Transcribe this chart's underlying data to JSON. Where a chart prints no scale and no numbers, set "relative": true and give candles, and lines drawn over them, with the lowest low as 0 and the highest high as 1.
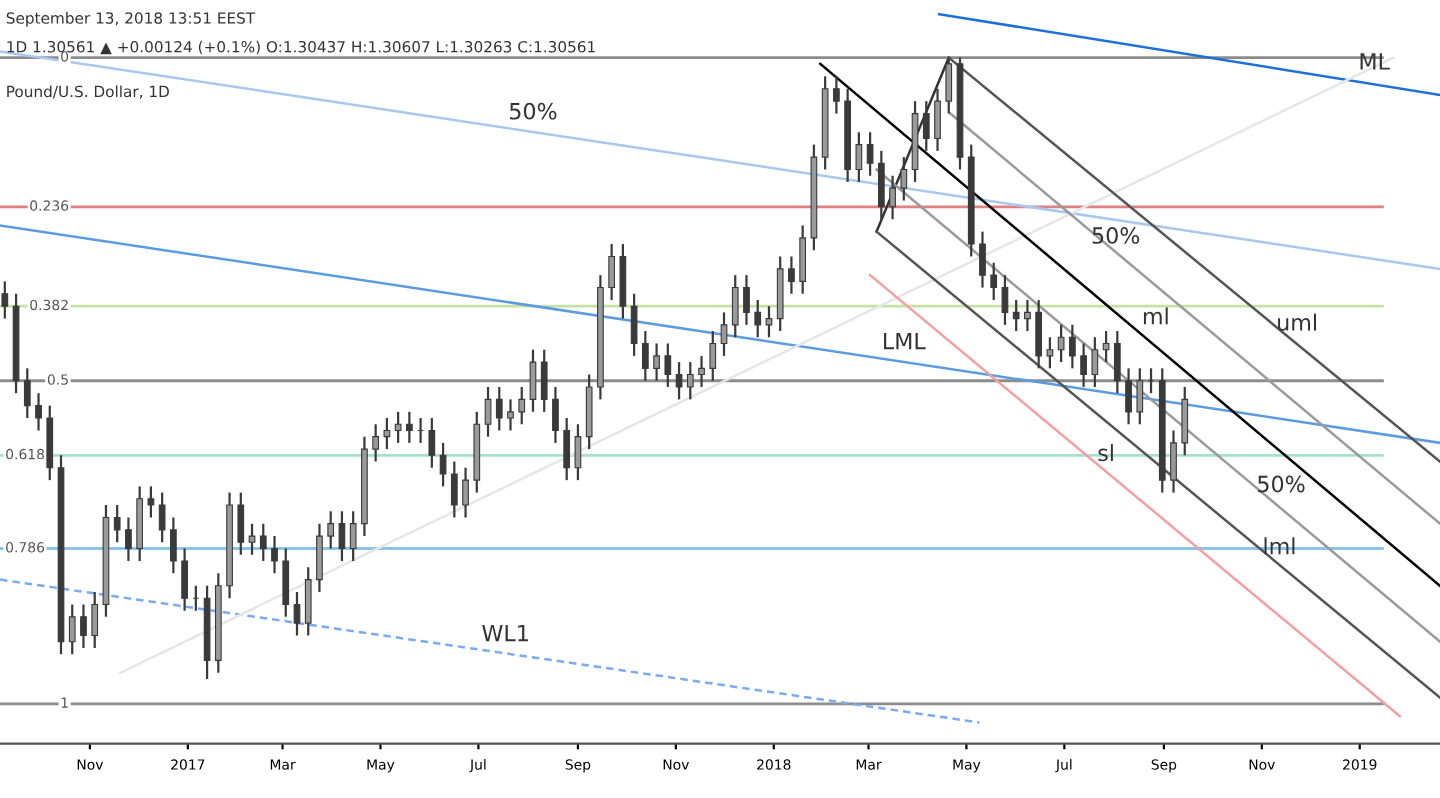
{
  "chart_data": {
    "type": "candlestick",
    "relative": true,
    "title": "Pound/U.S. Dollar, 1D",
    "color": "#3a3a3a",
    "tick_labels": "x",
    "annotations": [
      "September 13, 2018 13:51 EEST",
      "1D 1.30561 ▲ +0.00124 (+0.1%) O:1.30437 H:1.30607 L:1.30263 C:1.30561",
      {
        "text": "50%",
        "x": "2017-08-04",
        "y": 0.88
      },
      {
        "text": "LML",
        "x": "2018-03-23",
        "y": 0.51
      },
      {
        "text": "WL1",
        "x": "2017-07-18",
        "y": 0.04
      },
      {
        "text": "ML",
        "x": "2019-01-10",
        "y": 0.96
      },
      {
        "text": "50%",
        "x": "2018-08-02",
        "y": 0.68
      },
      {
        "text": "ml",
        "x": "2018-08-27",
        "y": 0.55
      },
      {
        "text": "uml",
        "x": "2018-11-23",
        "y": 0.54
      },
      {
        "text": "sl",
        "x": "2018-07-27",
        "y": 0.33
      },
      {
        "text": "50%",
        "x": "2018-11-13",
        "y": 0.28
      },
      {
        "text": "lml",
        "x": "2018-11-12",
        "y": 0.18
      },
      {
        "text": "0",
        "x": "2016-10-19",
        "y": 1.0
      },
      {
        "text": "0.236",
        "x": "2016-10-19",
        "y": 0.76
      },
      {
        "text": "0.382",
        "x": "2016-10-19",
        "y": 0.6
      },
      {
        "text": "0.5",
        "x": "2016-10-19",
        "y": 0.48
      },
      {
        "text": "0.618",
        "x": "2016-10-04",
        "y": 0.36
      },
      {
        "text": "0.786",
        "x": "2016-10-04",
        "y": 0.21
      },
      {
        "text": "1",
        "x": "2016-10-19",
        "y": -0.04
      }
    ],
    "xlim": [
      "2016-09-06",
      "2019-02-20"
    ],
    "xticks": [
      {
        "value": "2016-11-01",
        "label": "Nov"
      },
      {
        "value": "2017-01-01",
        "label": "2017"
      },
      {
        "value": "2017-03-01",
        "label": "Mar"
      },
      {
        "value": "2017-05-01",
        "label": "May"
      },
      {
        "value": "2017-07-01",
        "label": "Jul"
      },
      {
        "value": "2017-09-01",
        "label": "Sep"
      },
      {
        "value": "2017-11-01",
        "label": "Nov"
      },
      {
        "value": "2018-01-01",
        "label": "2018"
      },
      {
        "value": "2018-03-01",
        "label": "Mar"
      },
      {
        "value": "2018-05-01",
        "label": "May"
      },
      {
        "value": "2018-07-01",
        "label": "Jul"
      },
      {
        "value": "2018-09-01",
        "label": "Sep"
      },
      {
        "value": "2018-11-01",
        "label": "Nov"
      },
      {
        "value": "2019-01-01",
        "label": "2019"
      }
    ],
    "x": [
      "2016-09-09",
      "2016-09-16",
      "2016-09-23",
      "2016-09-30",
      "2016-10-07",
      "2016-10-14",
      "2016-10-21",
      "2016-10-28",
      "2016-11-04",
      "2016-11-11",
      "2016-11-18",
      "2016-11-25",
      "2016-12-02",
      "2016-12-09",
      "2016-12-16",
      "2016-12-23",
      "2016-12-30",
      "2017-01-06",
      "2017-01-13",
      "2017-01-20",
      "2017-01-27",
      "2017-02-03",
      "2017-02-10",
      "2017-02-17",
      "2017-02-24",
      "2017-03-03",
      "2017-03-10",
      "2017-03-17",
      "2017-03-24",
      "2017-03-31",
      "2017-04-07",
      "2017-04-14",
      "2017-04-21",
      "2017-04-28",
      "2017-05-05",
      "2017-05-12",
      "2017-05-19",
      "2017-05-26",
      "2017-06-02",
      "2017-06-09",
      "2017-06-16",
      "2017-06-23",
      "2017-06-30",
      "2017-07-07",
      "2017-07-14",
      "2017-07-21",
      "2017-07-28",
      "2017-08-04",
      "2017-08-11",
      "2017-08-18",
      "2017-08-25",
      "2017-09-01",
      "2017-09-08",
      "2017-09-15",
      "2017-09-22",
      "2017-09-29",
      "2017-10-06",
      "2017-10-13",
      "2017-10-20",
      "2017-10-27",
      "2017-11-03",
      "2017-11-10",
      "2017-11-17",
      "2017-11-24",
      "2017-12-01",
      "2017-12-08",
      "2017-12-15",
      "2017-12-22",
      "2017-12-29",
      "2018-01-05",
      "2018-01-12",
      "2018-01-19",
      "2018-01-26",
      "2018-02-02",
      "2018-02-09",
      "2018-02-16",
      "2018-02-23",
      "2018-03-02",
      "2018-03-09",
      "2018-03-16",
      "2018-03-23",
      "2018-03-30",
      "2018-04-06",
      "2018-04-13",
      "2018-04-20",
      "2018-04-27",
      "2018-05-04",
      "2018-05-11",
      "2018-05-18",
      "2018-05-25",
      "2018-06-01",
      "2018-06-08",
      "2018-06-15",
      "2018-06-22",
      "2018-06-29",
      "2018-07-06",
      "2018-07-13",
      "2018-07-20",
      "2018-07-27",
      "2018-08-03",
      "2018-08-10",
      "2018-08-17",
      "2018-08-24",
      "2018-08-31",
      "2018-09-07",
      "2018-09-14"
    ],
    "ohlc": [
      [
        0.62,
        0.64,
        0.58,
        0.6
      ],
      [
        0.6,
        0.62,
        0.46,
        0.48
      ],
      [
        0.48,
        0.5,
        0.42,
        0.44
      ],
      [
        0.44,
        0.46,
        0.4,
        0.42
      ],
      [
        0.42,
        0.44,
        0.32,
        0.34
      ],
      [
        0.34,
        0.36,
        0.04,
        0.06
      ],
      [
        0.06,
        0.12,
        0.04,
        0.1
      ],
      [
        0.1,
        0.12,
        0.05,
        0.07
      ],
      [
        0.07,
        0.14,
        0.05,
        0.12
      ],
      [
        0.12,
        0.28,
        0.1,
        0.26
      ],
      [
        0.26,
        0.28,
        0.22,
        0.24
      ],
      [
        0.24,
        0.26,
        0.19,
        0.21
      ],
      [
        0.21,
        0.31,
        0.19,
        0.29
      ],
      [
        0.29,
        0.31,
        0.26,
        0.28
      ],
      [
        0.28,
        0.3,
        0.22,
        0.24
      ],
      [
        0.24,
        0.26,
        0.17,
        0.19
      ],
      [
        0.19,
        0.21,
        0.11,
        0.13
      ],
      [
        0.13,
        0.15,
        0.11,
        0.13
      ],
      [
        0.13,
        0.15,
        0.0,
        0.03
      ],
      [
        0.03,
        0.17,
        0.01,
        0.15
      ],
      [
        0.15,
        0.3,
        0.13,
        0.28
      ],
      [
        0.28,
        0.3,
        0.2,
        0.22
      ],
      [
        0.22,
        0.25,
        0.2,
        0.23
      ],
      [
        0.23,
        0.25,
        0.19,
        0.21
      ],
      [
        0.21,
        0.23,
        0.17,
        0.19
      ],
      [
        0.19,
        0.21,
        0.1,
        0.12
      ],
      [
        0.12,
        0.14,
        0.07,
        0.09
      ],
      [
        0.09,
        0.18,
        0.07,
        0.16
      ],
      [
        0.16,
        0.25,
        0.14,
        0.23
      ],
      [
        0.23,
        0.27,
        0.21,
        0.25
      ],
      [
        0.25,
        0.27,
        0.19,
        0.21
      ],
      [
        0.21,
        0.27,
        0.19,
        0.25
      ],
      [
        0.25,
        0.39,
        0.23,
        0.37
      ],
      [
        0.37,
        0.41,
        0.35,
        0.39
      ],
      [
        0.39,
        0.42,
        0.37,
        0.4
      ],
      [
        0.4,
        0.43,
        0.38,
        0.41
      ],
      [
        0.41,
        0.43,
        0.38,
        0.4
      ],
      [
        0.4,
        0.42,
        0.38,
        0.4
      ],
      [
        0.4,
        0.42,
        0.34,
        0.36
      ],
      [
        0.36,
        0.38,
        0.31,
        0.33
      ],
      [
        0.33,
        0.35,
        0.26,
        0.28
      ],
      [
        0.28,
        0.34,
        0.26,
        0.32
      ],
      [
        0.32,
        0.43,
        0.3,
        0.41
      ],
      [
        0.41,
        0.47,
        0.39,
        0.45
      ],
      [
        0.45,
        0.47,
        0.4,
        0.42
      ],
      [
        0.42,
        0.45,
        0.4,
        0.43
      ],
      [
        0.43,
        0.47,
        0.41,
        0.45
      ],
      [
        0.45,
        0.53,
        0.43,
        0.51
      ],
      [
        0.51,
        0.53,
        0.43,
        0.45
      ],
      [
        0.45,
        0.47,
        0.38,
        0.4
      ],
      [
        0.4,
        0.42,
        0.32,
        0.34
      ],
      [
        0.34,
        0.41,
        0.32,
        0.39
      ],
      [
        0.39,
        0.49,
        0.37,
        0.47
      ],
      [
        0.47,
        0.65,
        0.45,
        0.63
      ],
      [
        0.63,
        0.7,
        0.61,
        0.68
      ],
      [
        0.68,
        0.7,
        0.58,
        0.6
      ],
      [
        0.6,
        0.62,
        0.52,
        0.54
      ],
      [
        0.54,
        0.56,
        0.48,
        0.5
      ],
      [
        0.5,
        0.54,
        0.48,
        0.52
      ],
      [
        0.52,
        0.54,
        0.47,
        0.49
      ],
      [
        0.49,
        0.51,
        0.45,
        0.47
      ],
      [
        0.47,
        0.51,
        0.45,
        0.49
      ],
      [
        0.49,
        0.52,
        0.47,
        0.5
      ],
      [
        0.5,
        0.56,
        0.48,
        0.54
      ],
      [
        0.54,
        0.59,
        0.52,
        0.57
      ],
      [
        0.57,
        0.65,
        0.55,
        0.63
      ],
      [
        0.63,
        0.65,
        0.57,
        0.59
      ],
      [
        0.59,
        0.61,
        0.55,
        0.57
      ],
      [
        0.57,
        0.6,
        0.55,
        0.58
      ],
      [
        0.58,
        0.68,
        0.56,
        0.66
      ],
      [
        0.66,
        0.68,
        0.62,
        0.64
      ],
      [
        0.64,
        0.73,
        0.62,
        0.71
      ],
      [
        0.71,
        0.86,
        0.69,
        0.84
      ],
      [
        0.84,
        0.97,
        0.82,
        0.95
      ],
      [
        0.95,
        0.97,
        0.91,
        0.93
      ],
      [
        0.93,
        0.95,
        0.8,
        0.82
      ],
      [
        0.82,
        0.88,
        0.8,
        0.86
      ],
      [
        0.86,
        0.88,
        0.81,
        0.83
      ],
      [
        0.83,
        0.85,
        0.74,
        0.76
      ],
      [
        0.76,
        0.81,
        0.74,
        0.79
      ],
      [
        0.79,
        0.84,
        0.77,
        0.82
      ],
      [
        0.82,
        0.93,
        0.8,
        0.91
      ],
      [
        0.91,
        0.93,
        0.85,
        0.87
      ],
      [
        0.87,
        0.95,
        0.85,
        0.93
      ],
      [
        0.93,
        1.0,
        0.91,
        0.99
      ],
      [
        0.99,
        1.0,
        0.82,
        0.84
      ],
      [
        0.84,
        0.86,
        0.68,
        0.7
      ],
      [
        0.7,
        0.72,
        0.63,
        0.65
      ],
      [
        0.65,
        0.67,
        0.61,
        0.63
      ],
      [
        0.63,
        0.65,
        0.57,
        0.59
      ],
      [
        0.59,
        0.61,
        0.56,
        0.58
      ],
      [
        0.58,
        0.61,
        0.56,
        0.59
      ],
      [
        0.59,
        0.61,
        0.5,
        0.52
      ],
      [
        0.52,
        0.55,
        0.5,
        0.53
      ],
      [
        0.53,
        0.57,
        0.51,
        0.55
      ],
      [
        0.55,
        0.57,
        0.5,
        0.52
      ],
      [
        0.52,
        0.54,
        0.47,
        0.49
      ],
      [
        0.49,
        0.55,
        0.47,
        0.53
      ],
      [
        0.53,
        0.56,
        0.51,
        0.54
      ],
      [
        0.54,
        0.56,
        0.46,
        0.48
      ],
      [
        0.48,
        0.5,
        0.41,
        0.43
      ],
      [
        0.43,
        0.5,
        0.41,
        0.48
      ],
      [
        0.48,
        0.5,
        0.46,
        0.48
      ],
      [
        0.48,
        0.5,
        0.3,
        0.32
      ],
      [
        0.32,
        0.4,
        0.3,
        0.38
      ],
      [
        0.38,
        0.47,
        0.36,
        0.45
      ]
    ],
    "series": [
      {
        "type": "line",
        "color": "#1e6fd9",
        "x": [
          "2018-04-14",
          "2019-02-20"
        ],
        "values": [
          1.07,
          0.94
        ]
      },
      {
        "type": "line",
        "color": "#a8c8f0",
        "x": [
          "2016-09-06",
          "2019-02-20"
        ],
        "values": [
          1.01,
          0.66
        ]
      },
      {
        "type": "line",
        "color": "#5b9be0",
        "x": [
          "2016-09-06",
          "2019-02-20"
        ],
        "values": [
          0.73,
          0.38
        ]
      },
      {
        "type": "line",
        "color": "#7aaaf0",
        "line_style": "dashed",
        "x": [
          "2016-09-06",
          "2018-05-09"
        ],
        "values": [
          0.16,
          -0.07
        ]
      },
      {
        "type": "line",
        "color": "#e6e6e6",
        "x": [
          "2016-11-20",
          "2019-01-22"
        ],
        "values": [
          0.01,
          1.0
        ]
      },
      {
        "type": "line",
        "color": "#000000",
        "x": [
          "2018-01-30",
          "2019-02-20"
        ],
        "values": [
          0.99,
          0.15
        ]
      },
      {
        "type": "line",
        "color": "#333333",
        "x": [
          "2018-03-06",
          "2018-04-20"
        ],
        "values": [
          0.72,
          1.0
        ]
      },
      {
        "type": "line",
        "color": "#555555",
        "x": [
          "2018-04-20",
          "2019-02-20"
        ],
        "values": [
          1.0,
          0.35
        ]
      },
      {
        "type": "line",
        "color": "#9a9a9a",
        "x": [
          "2018-04-21",
          "2019-02-20"
        ],
        "values": [
          0.91,
          0.25
        ]
      },
      {
        "type": "line",
        "color": "#9a9a9a",
        "x": [
          "2018-03-06",
          "2019-02-20"
        ],
        "values": [
          0.82,
          0.06
        ]
      },
      {
        "type": "line",
        "color": "#555555",
        "x": [
          "2018-03-06",
          "2019-02-20"
        ],
        "values": [
          0.72,
          -0.03
        ]
      },
      {
        "type": "line",
        "color": "#f4a0a0",
        "x": [
          "2018-03-02",
          "2019-01-26"
        ],
        "values": [
          0.65,
          -0.06
        ]
      }
    ],
    "ref_lines": [
      {
        "axis": "y",
        "value": 1.0,
        "color": "#8c8c8c"
      },
      {
        "axis": "y",
        "value": 0.76,
        "color": "#e08080"
      },
      {
        "axis": "y",
        "value": 0.6,
        "color": "#c5e1a5"
      },
      {
        "axis": "y",
        "value": 0.48,
        "color": "#8c8c8c"
      },
      {
        "axis": "y",
        "value": 0.36,
        "color": "#a5e0cf"
      },
      {
        "axis": "y",
        "value": 0.21,
        "color": "#8cc4e8"
      },
      {
        "axis": "y",
        "value": -0.04,
        "color": "#8c8c8c"
      }
    ]
  }
}
